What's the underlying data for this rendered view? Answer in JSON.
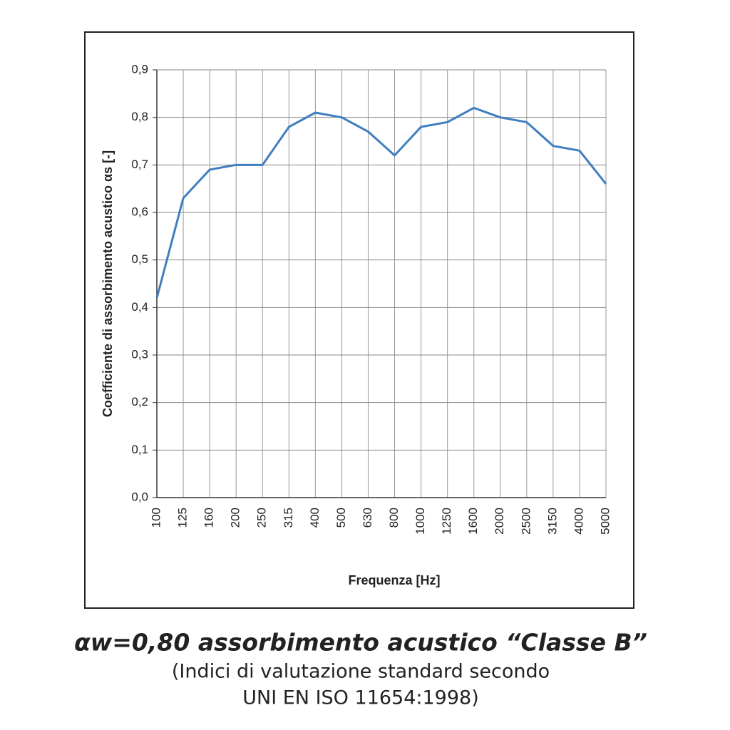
{
  "chart_data": {
    "type": "line",
    "x_label": "Frequenza [Hz]",
    "y_label": "Coefficiente di assorbimento acustico αs [-]",
    "categories": [
      "100",
      "125",
      "160",
      "200",
      "250",
      "315",
      "400",
      "500",
      "630",
      "800",
      "1000",
      "1250",
      "1600",
      "2000",
      "2500",
      "3150",
      "4000",
      "5000"
    ],
    "series": [
      {
        "color": "#3f7fc0",
        "values": [
          0.42,
          0.63,
          0.69,
          0.7,
          0.7,
          0.78,
          0.81,
          0.8,
          0.77,
          0.72,
          0.78,
          0.79,
          0.82,
          0.8,
          0.79,
          0.74,
          0.73,
          0.66
        ]
      }
    ],
    "ylim": [
      0,
      0.9
    ],
    "yticks": [
      {
        "value": 0,
        "label": "0,0"
      },
      {
        "value": 0.1,
        "label": "0,1"
      },
      {
        "value": 0.2,
        "label": "0,2"
      },
      {
        "value": 0.3,
        "label": "0,3"
      },
      {
        "value": 0.4,
        "label": "0,4"
      },
      {
        "value": 0.5,
        "label": "0,5"
      },
      {
        "value": 0.6,
        "label": "0,6"
      },
      {
        "value": 0.7,
        "label": "0,7"
      },
      {
        "value": 0.8,
        "label": "0,8"
      },
      {
        "value": 0.9,
        "label": "0,9"
      }
    ],
    "grid": true
  },
  "caption": {
    "title": "αw=0,80 assorbimento acustico “Classe B”",
    "lines": [
      "(Indici di valutazione standard secondo",
      "UNI EN ISO 11654:1998)"
    ]
  }
}
